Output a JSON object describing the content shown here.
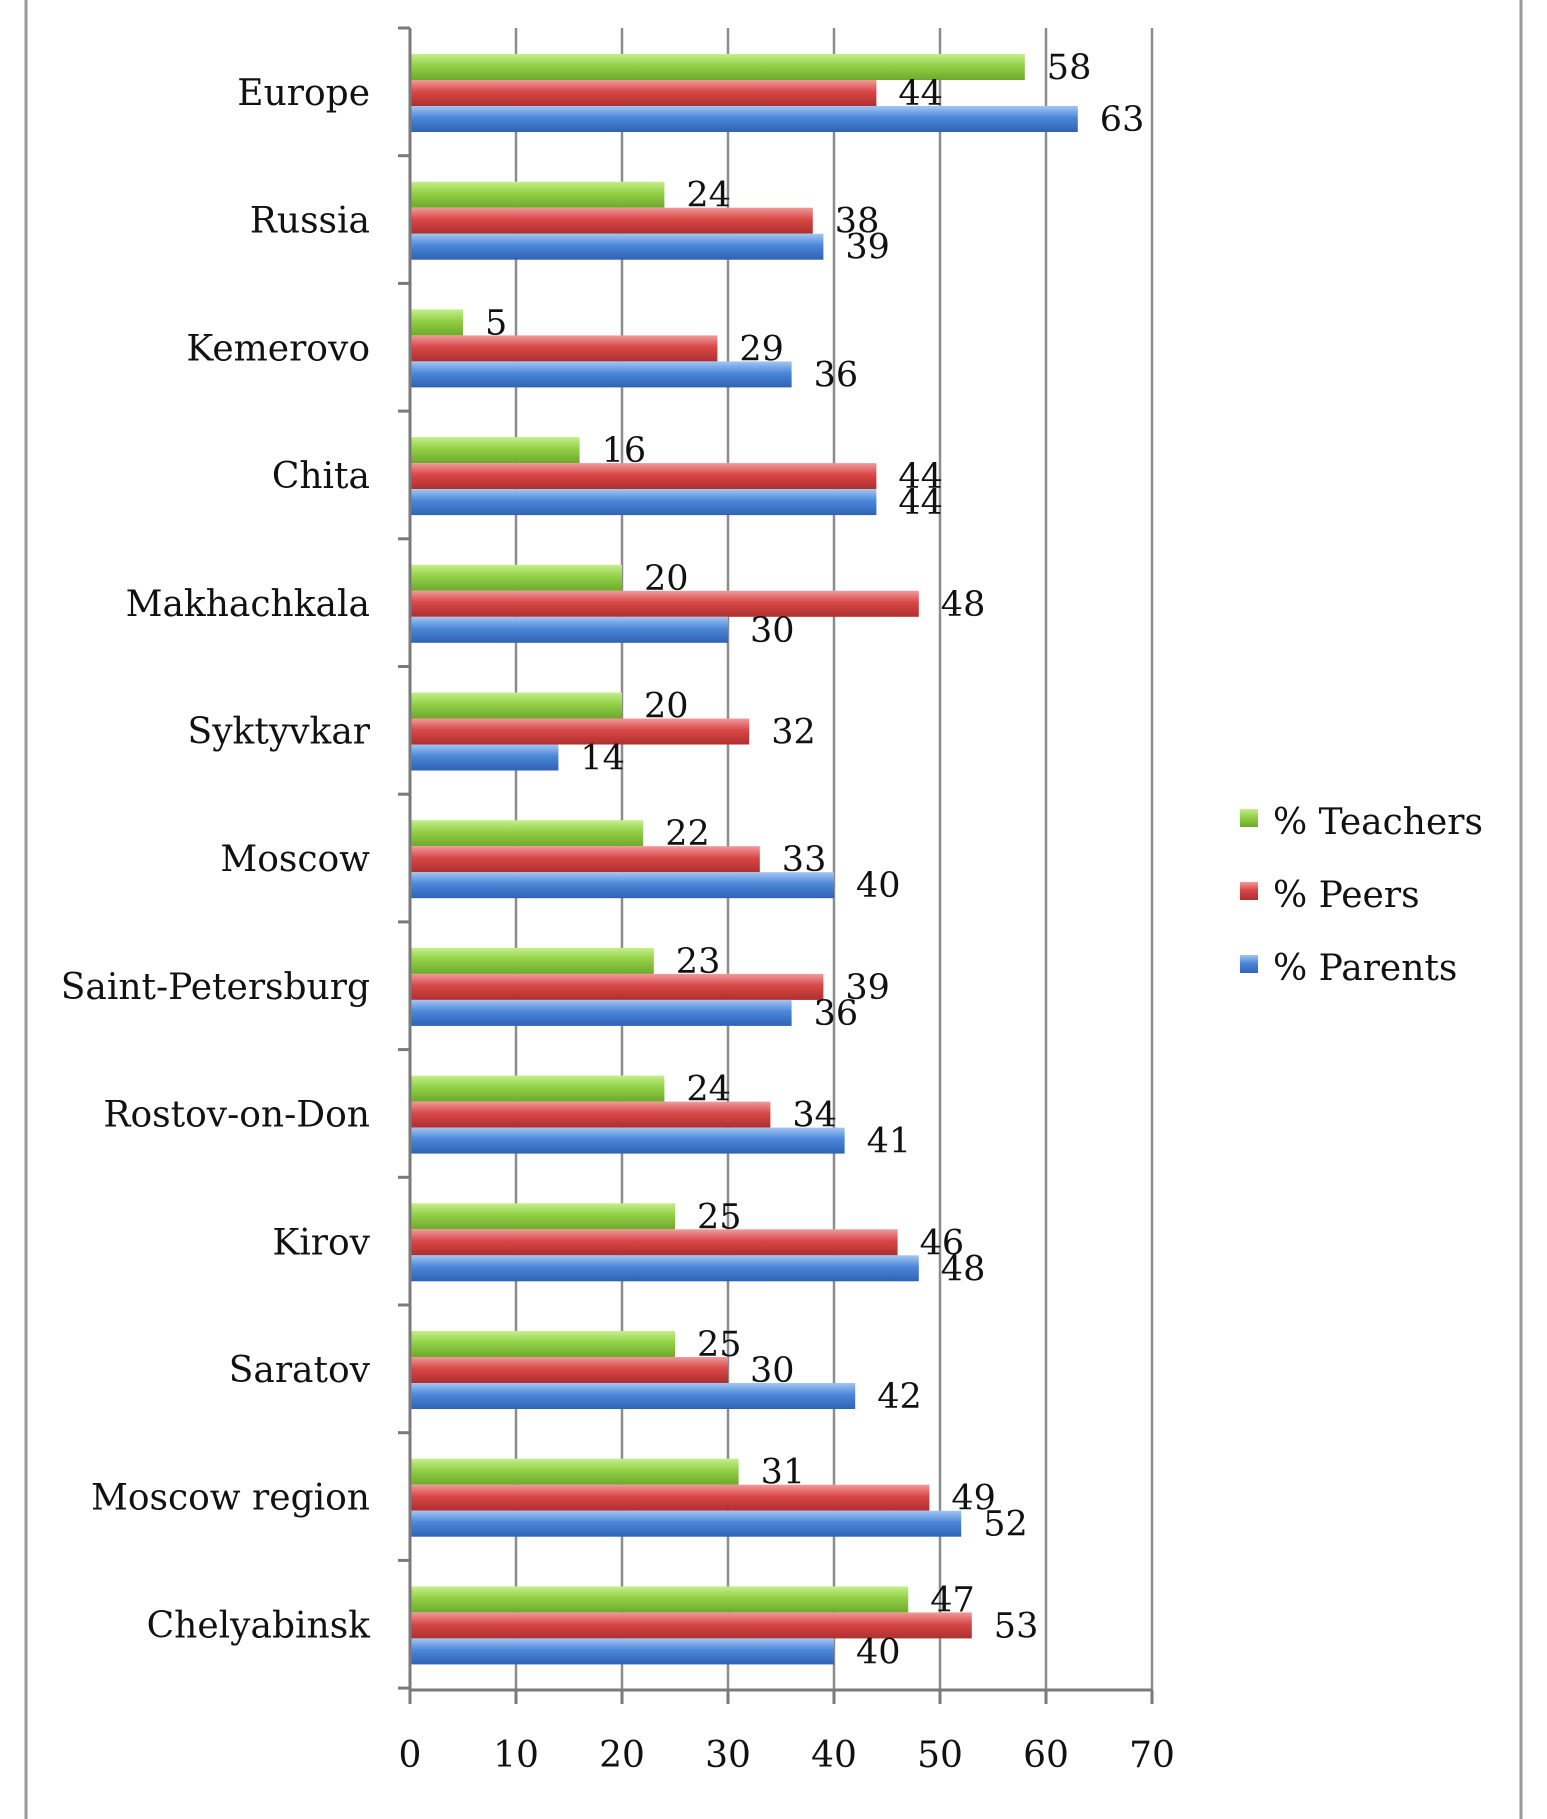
{
  "chart_data": {
    "type": "bar",
    "orientation": "horizontal",
    "title": "",
    "xlabel": "",
    "ylabel": "",
    "xlim": [
      0,
      70
    ],
    "x_ticks": [
      0,
      10,
      20,
      30,
      40,
      50,
      60,
      70
    ],
    "grid": "vertical",
    "legend_position": "right",
    "categories": [
      "Europe",
      "Russia",
      "Kemerovo",
      "Chita",
      "Makhachkala",
      "Syktyvkar",
      "Moscow",
      "Saint-Petersburg",
      "Rostov-on-Don",
      "Kirov",
      "Saratov",
      "Moscow region",
      "Chelyabinsk"
    ],
    "series": [
      {
        "name": "% Teachers",
        "color": "#8fce3e",
        "values": [
          58,
          24,
          5,
          16,
          20,
          20,
          22,
          23,
          24,
          25,
          25,
          31,
          47
        ]
      },
      {
        "name": "% Peers",
        "color": "#d94848",
        "values": [
          44,
          38,
          29,
          44,
          48,
          32,
          33,
          39,
          34,
          46,
          30,
          49,
          53
        ]
      },
      {
        "name": "% Parents",
        "color": "#4a86d8",
        "values": [
          63,
          39,
          36,
          44,
          30,
          14,
          40,
          36,
          41,
          48,
          42,
          52,
          40
        ]
      }
    ]
  }
}
